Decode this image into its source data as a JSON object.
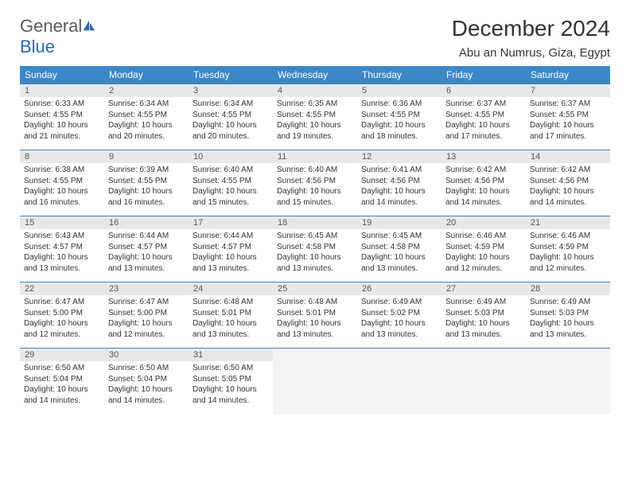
{
  "logo": {
    "part1": "General",
    "part2": "Blue"
  },
  "title": "December 2024",
  "location": "Abu an Numrus, Giza, Egypt",
  "header_bg": "#3b87c8",
  "day_num_bg": "#e8e8e8",
  "weekdays": [
    "Sunday",
    "Monday",
    "Tuesday",
    "Wednesday",
    "Thursday",
    "Friday",
    "Saturday"
  ],
  "days": [
    {
      "n": "1",
      "sr": "6:33 AM",
      "ss": "4:55 PM",
      "dl": "10 hours and 21 minutes."
    },
    {
      "n": "2",
      "sr": "6:34 AM",
      "ss": "4:55 PM",
      "dl": "10 hours and 20 minutes."
    },
    {
      "n": "3",
      "sr": "6:34 AM",
      "ss": "4:55 PM",
      "dl": "10 hours and 20 minutes."
    },
    {
      "n": "4",
      "sr": "6:35 AM",
      "ss": "4:55 PM",
      "dl": "10 hours and 19 minutes."
    },
    {
      "n": "5",
      "sr": "6:36 AM",
      "ss": "4:55 PM",
      "dl": "10 hours and 18 minutes."
    },
    {
      "n": "6",
      "sr": "6:37 AM",
      "ss": "4:55 PM",
      "dl": "10 hours and 17 minutes."
    },
    {
      "n": "7",
      "sr": "6:37 AM",
      "ss": "4:55 PM",
      "dl": "10 hours and 17 minutes."
    },
    {
      "n": "8",
      "sr": "6:38 AM",
      "ss": "4:55 PM",
      "dl": "10 hours and 16 minutes."
    },
    {
      "n": "9",
      "sr": "6:39 AM",
      "ss": "4:55 PM",
      "dl": "10 hours and 16 minutes."
    },
    {
      "n": "10",
      "sr": "6:40 AM",
      "ss": "4:55 PM",
      "dl": "10 hours and 15 minutes."
    },
    {
      "n": "11",
      "sr": "6:40 AM",
      "ss": "4:56 PM",
      "dl": "10 hours and 15 minutes."
    },
    {
      "n": "12",
      "sr": "6:41 AM",
      "ss": "4:56 PM",
      "dl": "10 hours and 14 minutes."
    },
    {
      "n": "13",
      "sr": "6:42 AM",
      "ss": "4:56 PM",
      "dl": "10 hours and 14 minutes."
    },
    {
      "n": "14",
      "sr": "6:42 AM",
      "ss": "4:56 PM",
      "dl": "10 hours and 14 minutes."
    },
    {
      "n": "15",
      "sr": "6:43 AM",
      "ss": "4:57 PM",
      "dl": "10 hours and 13 minutes."
    },
    {
      "n": "16",
      "sr": "6:44 AM",
      "ss": "4:57 PM",
      "dl": "10 hours and 13 minutes."
    },
    {
      "n": "17",
      "sr": "6:44 AM",
      "ss": "4:57 PM",
      "dl": "10 hours and 13 minutes."
    },
    {
      "n": "18",
      "sr": "6:45 AM",
      "ss": "4:58 PM",
      "dl": "10 hours and 13 minutes."
    },
    {
      "n": "19",
      "sr": "6:45 AM",
      "ss": "4:58 PM",
      "dl": "10 hours and 13 minutes."
    },
    {
      "n": "20",
      "sr": "6:46 AM",
      "ss": "4:59 PM",
      "dl": "10 hours and 12 minutes."
    },
    {
      "n": "21",
      "sr": "6:46 AM",
      "ss": "4:59 PM",
      "dl": "10 hours and 12 minutes."
    },
    {
      "n": "22",
      "sr": "6:47 AM",
      "ss": "5:00 PM",
      "dl": "10 hours and 12 minutes."
    },
    {
      "n": "23",
      "sr": "6:47 AM",
      "ss": "5:00 PM",
      "dl": "10 hours and 12 minutes."
    },
    {
      "n": "24",
      "sr": "6:48 AM",
      "ss": "5:01 PM",
      "dl": "10 hours and 13 minutes."
    },
    {
      "n": "25",
      "sr": "6:48 AM",
      "ss": "5:01 PM",
      "dl": "10 hours and 13 minutes."
    },
    {
      "n": "26",
      "sr": "6:49 AM",
      "ss": "5:02 PM",
      "dl": "10 hours and 13 minutes."
    },
    {
      "n": "27",
      "sr": "6:49 AM",
      "ss": "5:03 PM",
      "dl": "10 hours and 13 minutes."
    },
    {
      "n": "28",
      "sr": "6:49 AM",
      "ss": "5:03 PM",
      "dl": "10 hours and 13 minutes."
    },
    {
      "n": "29",
      "sr": "6:50 AM",
      "ss": "5:04 PM",
      "dl": "10 hours and 14 minutes."
    },
    {
      "n": "30",
      "sr": "6:50 AM",
      "ss": "5:04 PM",
      "dl": "10 hours and 14 minutes."
    },
    {
      "n": "31",
      "sr": "6:50 AM",
      "ss": "5:05 PM",
      "dl": "10 hours and 14 minutes."
    }
  ],
  "labels": {
    "sunrise": "Sunrise: ",
    "sunset": "Sunset: ",
    "daylight": "Daylight: "
  }
}
